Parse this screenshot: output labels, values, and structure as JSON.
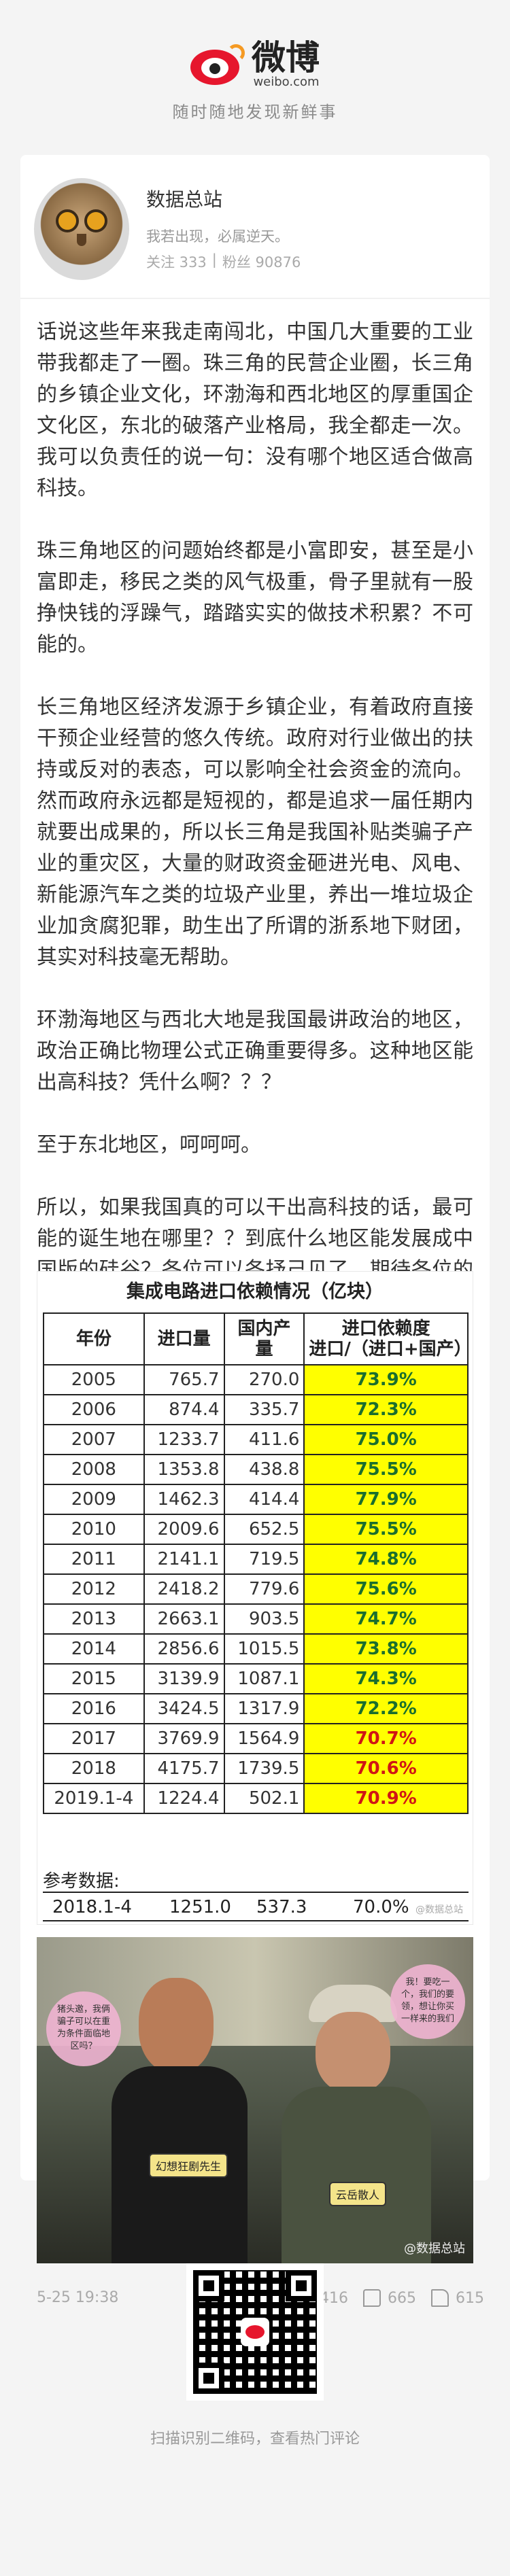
{
  "brand": {
    "name": "微博",
    "url": "weibo.com",
    "slogan": "随时随地发现新鲜事"
  },
  "profile": {
    "name": "数据总站",
    "description": "我若出现，必属逆天。",
    "follow_label": "关注 333",
    "separator": "|",
    "fans_label": "粉丝 90876"
  },
  "post": {
    "paragraphs": [
      "话说这些年来我走南闯北，中国几大重要的工业带我都走了一圈。珠三角的民营企业圈，长三角的乡镇企业文化，环渤海和西北地区的厚重国企文化区，东北的破落产业格局，我全都走一次。我可以负责任的说一句：没有哪个地区适合做高科技。",
      "珠三角地区的问题始终都是小富即安，甚至是小富即走，移民之类的风气极重，骨子里就有一股挣快钱的浮躁气，踏踏实实的做技术积累？不可能的。",
      "长三角地区经济发源于乡镇企业，有着政府直接干预企业经营的悠久传统。政府对行业做出的扶持或反对的表态，可以影响全社会资金的流向。然而政府永远都是短视的，都是追求一届任期内就要出成果的，所以长三角是我国补贴类骗子产业的重灾区，大量的财政资金砸进光电、风电、新能源汽车之类的垃圾产业里，养出一堆垃圾企业加贪腐犯罪，助生出了所谓的浙系地下财团，其实对科技毫无帮助。",
      "环渤海地区与西北大地是我国最讲政治的地区，政治正确比物理公式正确重要得多。这种地区能出高科技？凭什么啊？？？",
      "至于东北地区，呵呵呵。",
      "所以，如果我国真的可以干出高科技的话，最可能的诞生地在哪里？？到底什么地区能发展成中国版的硅谷？各位可以各抒己见了。期待各位的真知灼见。"
    ]
  },
  "table": {
    "title": "集成电路进口依赖情况（亿块）",
    "headers": {
      "year": "年份",
      "import": "进口量",
      "domestic": "国内产量",
      "ratio_line1": "进口依赖度",
      "ratio_line2": "进口/（进口+国产）"
    },
    "rows": [
      {
        "year": "2005",
        "import": "765.7",
        "domestic": "270.0",
        "ratio": "73.9%",
        "highlight": false
      },
      {
        "year": "2006",
        "import": "874.4",
        "domestic": "335.7",
        "ratio": "72.3%",
        "highlight": false
      },
      {
        "year": "2007",
        "import": "1233.7",
        "domestic": "411.6",
        "ratio": "75.0%",
        "highlight": false
      },
      {
        "year": "2008",
        "import": "1353.8",
        "domestic": "438.8",
        "ratio": "75.5%",
        "highlight": false
      },
      {
        "year": "2009",
        "import": "1462.3",
        "domestic": "414.4",
        "ratio": "77.9%",
        "highlight": false
      },
      {
        "year": "2010",
        "import": "2009.6",
        "domestic": "652.5",
        "ratio": "75.5%",
        "highlight": false
      },
      {
        "year": "2011",
        "import": "2141.1",
        "domestic": "719.5",
        "ratio": "74.8%",
        "highlight": false
      },
      {
        "year": "2012",
        "import": "2418.2",
        "domestic": "779.6",
        "ratio": "75.6%",
        "highlight": false
      },
      {
        "year": "2013",
        "import": "2663.1",
        "domestic": "903.5",
        "ratio": "74.7%",
        "highlight": false
      },
      {
        "year": "2014",
        "import": "2856.6",
        "domestic": "1015.5",
        "ratio": "73.8%",
        "highlight": false
      },
      {
        "year": "2015",
        "import": "3139.9",
        "domestic": "1087.1",
        "ratio": "74.3%",
        "highlight": false
      },
      {
        "year": "2016",
        "import": "3424.5",
        "domestic": "1317.9",
        "ratio": "72.2%",
        "highlight": false
      },
      {
        "year": "2017",
        "import": "3769.9",
        "domestic": "1564.9",
        "ratio": "70.7%",
        "highlight": true
      },
      {
        "year": "2018",
        "import": "4175.7",
        "domestic": "1739.5",
        "ratio": "70.6%",
        "highlight": true
      },
      {
        "year": "2019.1-4",
        "import": "1224.4",
        "domestic": "502.1",
        "ratio": "70.9%",
        "highlight": true
      }
    ],
    "reference_label": "参考数据:",
    "reference_row": {
      "year": "2018.1-4",
      "import": "1251.0",
      "domestic": "537.3",
      "ratio": "70.0%"
    },
    "watermark": "@数据总站"
  },
  "photo": {
    "sign_left": "幻想狂剧先生",
    "sign_right": "云岳散人",
    "bubble_left": "猪头邀，我俩骗子可以在重为条件面临地区吗？",
    "bubble_right": "我！要吃一个，我们的要领，想让你买一样来的我们",
    "watermark": "@数据总站"
  },
  "footer": {
    "date": "5-25 19:38",
    "repost_count": "416",
    "comment_count": "665",
    "like_count": "615"
  },
  "qr": {
    "caption": "扫描识别二维码，查看热门评论"
  }
}
